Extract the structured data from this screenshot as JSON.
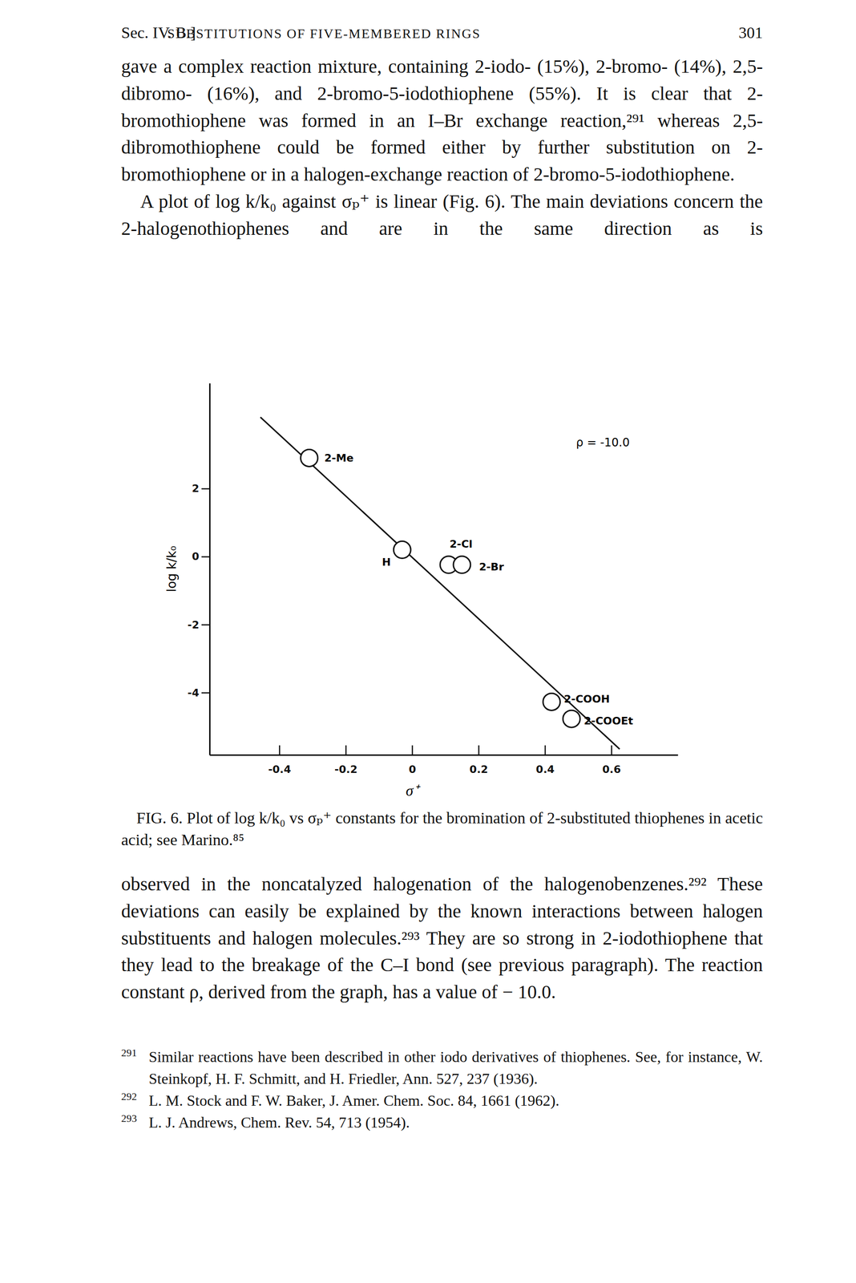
{
  "header": {
    "section": "Sec. IV. B.]",
    "running_title": "SUBSTITUTIONS OF FIVE-MEMBERED RINGS",
    "page_number": "301"
  },
  "text_before_figure": [
    "gave a complex reaction mixture, containing 2-iodo- (15%), 2-bromo- (14%), 2,5-dibromo- (16%), and 2-bromo-5-iodothiophene (55%). It is clear that 2-bromothiophene was formed in an I–Br exchange reaction,²⁹¹ whereas 2,5-dibromothiophene could be formed either by further substitution on 2-bromothiophene or in a halogen-exchange reaction of 2-bromo-5-iodothiophene.",
    "A plot of log k/k₀ against σₚ⁺ is linear (Fig. 6). The main deviations concern the 2-halogenothiophenes and are in the same direction as is"
  ],
  "chart_data": {
    "type": "scatter",
    "x_label": "σ⁺",
    "y_label": "log k/k₀",
    "annotations": [
      "ρ = -10.0"
    ],
    "xlim": [
      -0.61,
      0.8
    ],
    "ylim": [
      -5.83,
      5.1
    ],
    "xticks": [
      -0.4,
      -0.2,
      0,
      0.2,
      0.4,
      0.6
    ],
    "yticks": [
      2,
      0,
      -2,
      -4
    ],
    "series": [
      {
        "type": "scatter",
        "marker": "circle",
        "labels": [
          "2-Me",
          "H",
          "2-Cl",
          "2-Br",
          "2-COOH",
          "2-COOEt"
        ],
        "x": [
          -0.31,
          -0.03,
          0.11,
          0.15,
          0.42,
          0.48
        ],
        "values": [
          2.9,
          0.2,
          -0.24,
          -0.24,
          -4.27,
          -4.77
        ]
      },
      {
        "type": "line",
        "line_style": "solid",
        "x": [
          -0.457,
          0.625
        ],
        "values": [
          4.1,
          -5.66
        ]
      }
    ]
  },
  "caption": "FIG. 6. Plot of log k/k₀ vs σₚ⁺ constants for the bromination of 2-substituted thiophenes in acetic acid; see Marino.⁸⁵",
  "text_after_figure": [
    "observed in the noncatalyzed halogenation of the halogenobenzenes.²⁹² These deviations can easily be explained by the known interactions between halogen substituents and halogen molecules.²⁹³ They are so strong in 2-iodothiophene that they lead to the breakage of the C–I bond (see previous paragraph). The reaction constant ρ, derived from the graph, has a value of − 10.0."
  ],
  "footnotes": [
    {
      "number": "291",
      "text": "Similar reactions have been described in other iodo derivatives of thiophenes. See, for instance, W. Steinkopf, H. F. Schmitt, and H. Friedler, Ann. 527, 237 (1936)."
    },
    {
      "number": "292",
      "text": "L. M. Stock and F. W. Baker, J. Amer. Chem. Soc. 84, 1661 (1962)."
    },
    {
      "number": "293",
      "text": "L. J. Andrews, Chem. Rev. 54, 713 (1954)."
    }
  ]
}
